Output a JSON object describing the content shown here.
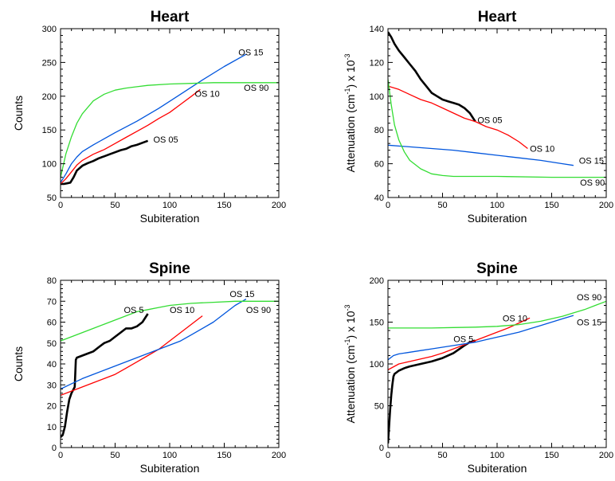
{
  "chart_data": [
    {
      "type": "line",
      "title": "Heart",
      "xlabel": "Subiteration",
      "ylabel": "Counts",
      "ylabel_super": "",
      "ylabel_tail": "",
      "xlim": [
        0,
        200
      ],
      "ylim": [
        50,
        300
      ],
      "xticks": [
        0,
        50,
        100,
        150,
        200
      ],
      "yticks": [
        50,
        100,
        150,
        200,
        250,
        300
      ],
      "series": [
        {
          "name": "OS 05",
          "color": "#000000",
          "width": 2.6,
          "label_at": [
            85,
            136
          ],
          "x": [
            0,
            3,
            6,
            9,
            12,
            15,
            20,
            25,
            30,
            35,
            40,
            45,
            50,
            55,
            60,
            65,
            70,
            75,
            80
          ],
          "y": [
            70,
            70,
            71,
            72,
            80,
            90,
            97,
            101,
            104,
            108,
            111,
            114,
            117,
            120,
            122,
            126,
            128,
            131,
            134
          ]
        },
        {
          "name": "OS 10",
          "color": "#ff0000",
          "width": 1.3,
          "label_at": [
            123,
            204
          ],
          "x": [
            0,
            5,
            10,
            15,
            20,
            30,
            40,
            50,
            60,
            70,
            80,
            90,
            100,
            110,
            120,
            128
          ],
          "y": [
            70,
            78,
            88,
            98,
            105,
            114,
            121,
            130,
            139,
            148,
            157,
            167,
            176,
            188,
            200,
            210
          ]
        },
        {
          "name": "OS 15",
          "color": "#0055dd",
          "width": 1.3,
          "label_at": [
            163,
            265
          ],
          "x": [
            0,
            5,
            10,
            15,
            20,
            30,
            50,
            70,
            90,
            110,
            130,
            150,
            170
          ],
          "y": [
            72,
            85,
            100,
            110,
            118,
            128,
            146,
            163,
            182,
            203,
            224,
            244,
            262
          ]
        },
        {
          "name": "OS 90",
          "color": "#33dd33",
          "width": 1.3,
          "label_at": [
            168,
            213
          ],
          "x": [
            0,
            5,
            10,
            15,
            20,
            30,
            40,
            50,
            60,
            70,
            80,
            100,
            120,
            140,
            160,
            180,
            200
          ],
          "y": [
            80,
            115,
            140,
            160,
            174,
            193,
            203,
            209,
            212,
            214,
            216,
            218,
            219,
            220,
            220,
            220,
            220
          ]
        }
      ]
    },
    {
      "type": "line",
      "title": "Heart",
      "xlabel": "Subiteration",
      "ylabel": "Attenuation (cm",
      "ylabel_super": "-1",
      "ylabel_tail": ") x 10",
      "ylabel_super2": "-3",
      "xlim": [
        0,
        200
      ],
      "ylim": [
        40,
        140
      ],
      "xticks": [
        0,
        50,
        100,
        150,
        200
      ],
      "yticks": [
        40,
        60,
        80,
        100,
        120,
        140
      ],
      "series": [
        {
          "name": "OS 05",
          "color": "#000000",
          "width": 2.6,
          "label_at": [
            82,
            86
          ],
          "x": [
            0,
            3,
            6,
            10,
            15,
            20,
            25,
            30,
            35,
            40,
            45,
            50,
            55,
            60,
            65,
            70,
            75,
            80
          ],
          "y": [
            138,
            135,
            131,
            127,
            123,
            119,
            115,
            110,
            106,
            102,
            100,
            98,
            97,
            96,
            95,
            93,
            90,
            85
          ]
        },
        {
          "name": "OS 10",
          "color": "#ff0000",
          "width": 1.3,
          "label_at": [
            130,
            69
          ],
          "x": [
            0,
            10,
            20,
            30,
            40,
            50,
            60,
            70,
            80,
            90,
            100,
            110,
            120,
            128
          ],
          "y": [
            106,
            104,
            101,
            98,
            96,
            93,
            90,
            87,
            85,
            82,
            80,
            77,
            73,
            69
          ]
        },
        {
          "name": "OS 15",
          "color": "#0055dd",
          "width": 1.3,
          "label_at": [
            175,
            62
          ],
          "x": [
            0,
            20,
            40,
            60,
            80,
            100,
            120,
            140,
            160,
            170
          ],
          "y": [
            71,
            70,
            69,
            68,
            66.5,
            65,
            63.5,
            62,
            60,
            59
          ]
        },
        {
          "name": "OS 90",
          "color": "#33dd33",
          "width": 1.3,
          "label_at": [
            176,
            49
          ],
          "x": [
            0,
            3,
            6,
            10,
            15,
            20,
            30,
            40,
            50,
            60,
            80,
            100,
            150,
            200
          ],
          "y": [
            110,
            95,
            83,
            74,
            67,
            62,
            57,
            54,
            53,
            52.5,
            52.5,
            52.5,
            52,
            52
          ]
        }
      ]
    },
    {
      "type": "line",
      "title": "Spine",
      "xlabel": "Subiteration",
      "ylabel": "Counts",
      "ylabel_super": "",
      "ylabel_tail": "",
      "xlim": [
        0,
        200
      ],
      "ylim": [
        0,
        80
      ],
      "xticks": [
        0,
        50,
        100,
        150,
        200
      ],
      "yticks": [
        0,
        10,
        20,
        30,
        40,
        50,
        60,
        70,
        80
      ],
      "series": [
        {
          "name": "OS 5",
          "color": "#000000",
          "width": 2.6,
          "label_at": [
            58,
            66
          ],
          "x": [
            0,
            2,
            4,
            6,
            8,
            10,
            13,
            14,
            15,
            20,
            25,
            30,
            35,
            40,
            45,
            50,
            55,
            60,
            65,
            70,
            75,
            80
          ],
          "y": [
            5,
            6,
            10,
            17,
            23,
            26,
            29,
            42,
            43,
            44,
            45,
            46,
            48,
            50,
            51,
            53,
            55,
            57,
            57,
            58,
            60,
            64
          ]
        },
        {
          "name": "OS 10",
          "color": "#ff0000",
          "width": 1.3,
          "label_at": [
            100,
            66
          ],
          "x": [
            0,
            10,
            20,
            30,
            40,
            50,
            60,
            70,
            80,
            90,
            100,
            110,
            120,
            130
          ],
          "y": [
            25,
            27,
            29,
            31,
            33,
            35,
            38,
            41,
            44,
            47,
            51,
            55,
            59,
            63
          ]
        },
        {
          "name": "OS 15",
          "color": "#0055dd",
          "width": 1.3,
          "label_at": [
            155,
            73.5
          ],
          "x": [
            0,
            10,
            20,
            30,
            40,
            50,
            60,
            70,
            80,
            90,
            100,
            110,
            120,
            130,
            140,
            150,
            160,
            170
          ],
          "y": [
            28,
            30.5,
            33,
            35,
            37,
            39,
            41,
            43,
            45,
            47,
            49,
            51,
            54,
            57,
            60,
            64,
            68,
            71
          ]
        },
        {
          "name": "OS 90",
          "color": "#33dd33",
          "width": 1.3,
          "label_at": [
            170,
            66
          ],
          "x": [
            0,
            10,
            20,
            30,
            40,
            50,
            60,
            70,
            80,
            90,
            100,
            120,
            140,
            160,
            180,
            200
          ],
          "y": [
            51,
            53,
            55,
            57,
            59,
            61,
            63,
            65,
            66,
            67,
            68,
            69,
            69.5,
            70,
            70,
            70
          ]
        }
      ]
    },
    {
      "type": "line",
      "title": "Spine",
      "xlabel": "Subiteration",
      "ylabel": "Attenuation (cm",
      "ylabel_super": "-1",
      "ylabel_tail": ") x 10",
      "ylabel_super2": "-3",
      "xlim": [
        0,
        200
      ],
      "ylim": [
        0,
        200
      ],
      "xticks": [
        0,
        50,
        100,
        150,
        200
      ],
      "yticks": [
        0,
        50,
        100,
        150,
        200
      ],
      "series": [
        {
          "name": "OS 5",
          "color": "#000000",
          "width": 2.6,
          "label_at": [
            60,
            130
          ],
          "x": [
            0,
            1,
            2,
            3,
            4,
            5,
            6,
            8,
            10,
            15,
            20,
            30,
            40,
            50,
            60,
            70,
            75,
            80
          ],
          "y": [
            5,
            25,
            45,
            62,
            75,
            85,
            88,
            90,
            92,
            95,
            97,
            100,
            103,
            107,
            113,
            122,
            126,
            128
          ]
        },
        {
          "name": "OS 10",
          "color": "#ff0000",
          "width": 1.3,
          "label_at": [
            105,
            155
          ],
          "x": [
            0,
            10,
            20,
            30,
            40,
            50,
            60,
            70,
            80,
            90,
            100,
            110,
            120,
            130
          ],
          "y": [
            93,
            100,
            103,
            106,
            109,
            113,
            118,
            123,
            128,
            133,
            138,
            143,
            149,
            155
          ]
        },
        {
          "name": "OS 15",
          "color": "#0055dd",
          "width": 1.3,
          "label_at": [
            173,
            150
          ],
          "x": [
            0,
            5,
            10,
            20,
            30,
            40,
            50,
            60,
            70,
            80,
            90,
            100,
            110,
            120,
            130,
            140,
            150,
            160,
            170
          ],
          "y": [
            105,
            110,
            112,
            114,
            116,
            118,
            120,
            122,
            124,
            126,
            129,
            132,
            135,
            138,
            142,
            146,
            150,
            154,
            158
          ]
        },
        {
          "name": "OS 90",
          "color": "#33dd33",
          "width": 1.3,
          "label_at": [
            173,
            180
          ],
          "x": [
            0,
            20,
            40,
            60,
            80,
            100,
            120,
            140,
            150,
            160,
            170,
            180,
            190,
            200
          ],
          "y": [
            143,
            143,
            143,
            143.5,
            144,
            145,
            147,
            151,
            154,
            157,
            161,
            165,
            170,
            175
          ]
        }
      ]
    }
  ]
}
